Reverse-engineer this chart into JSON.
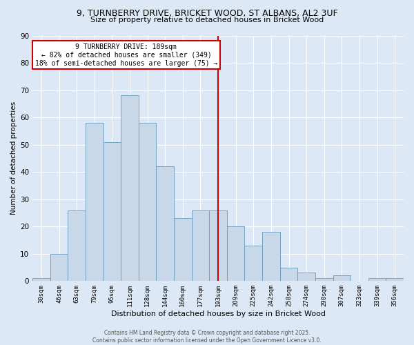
{
  "title1": "9, TURNBERRY DRIVE, BRICKET WOOD, ST ALBANS, AL2 3UF",
  "title2": "Size of property relative to detached houses in Bricket Wood",
  "xlabel": "Distribution of detached houses by size in Bricket Wood",
  "ylabel": "Number of detached properties",
  "bin_labels": [
    "30sqm",
    "46sqm",
    "63sqm",
    "79sqm",
    "95sqm",
    "111sqm",
    "128sqm",
    "144sqm",
    "160sqm",
    "177sqm",
    "193sqm",
    "209sqm",
    "225sqm",
    "242sqm",
    "258sqm",
    "274sqm",
    "290sqm",
    "307sqm",
    "323sqm",
    "339sqm",
    "356sqm"
  ],
  "bar_heights": [
    1,
    10,
    26,
    58,
    51,
    68,
    58,
    42,
    23,
    26,
    26,
    20,
    13,
    18,
    5,
    3,
    1,
    2,
    0,
    1,
    1
  ],
  "bar_color": "#c8d8e8",
  "bar_edge_color": "#6699bb",
  "vline_x": 10,
  "vline_color": "#cc0000",
  "annotation_text": "9 TURNBERRY DRIVE: 189sqm\n← 82% of detached houses are smaller (349)\n18% of semi-detached houses are larger (75) →",
  "annotation_box_color": "#ffffff",
  "annotation_box_edge": "#cc0000",
  "background_color": "#dce8f5",
  "grid_color": "#ffffff",
  "footer_text": "Contains HM Land Registry data © Crown copyright and database right 2025.\nContains public sector information licensed under the Open Government Licence v3.0.",
  "ylim": [
    0,
    90
  ],
  "yticks": [
    0,
    10,
    20,
    30,
    40,
    50,
    60,
    70,
    80,
    90
  ]
}
